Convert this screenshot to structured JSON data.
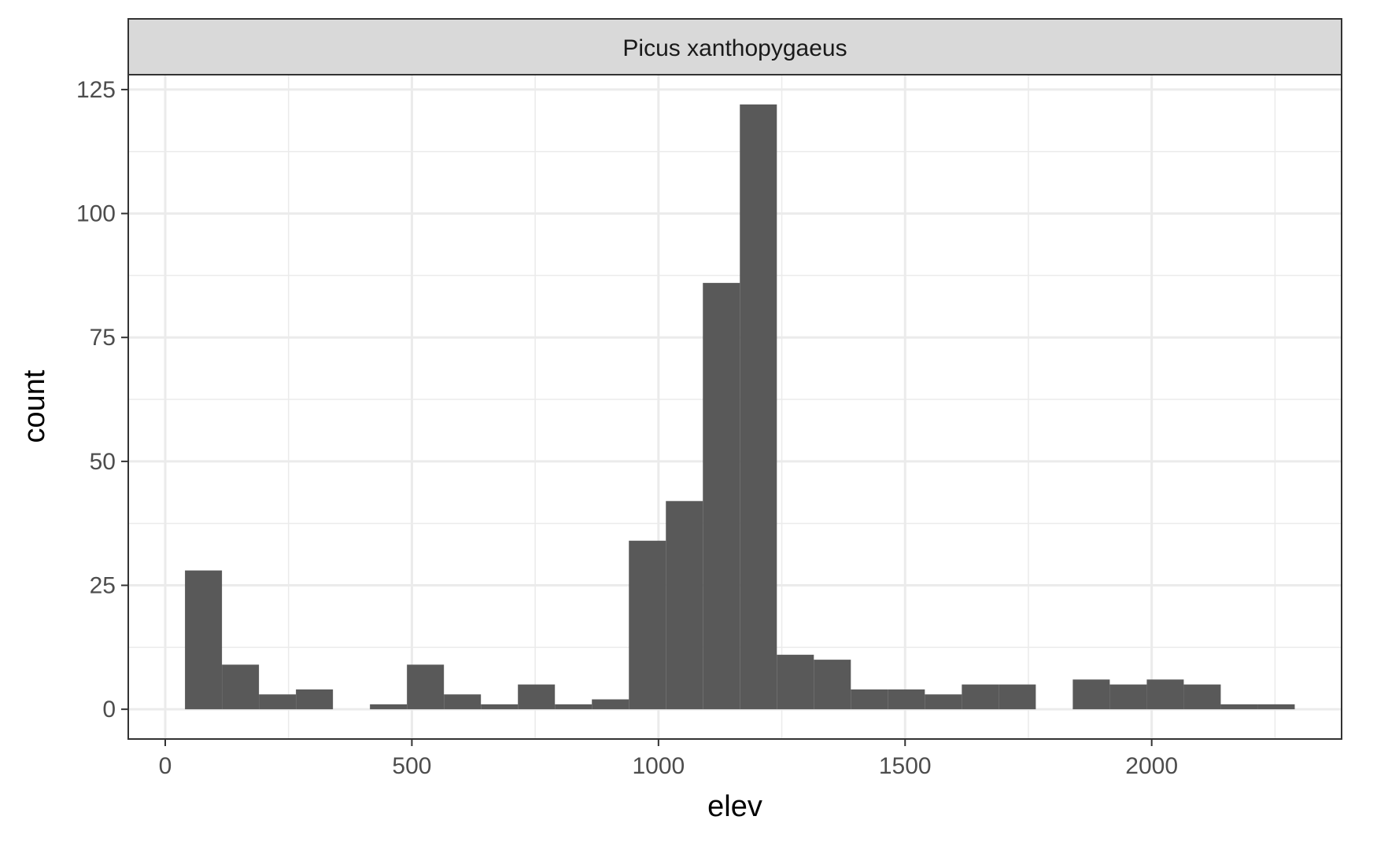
{
  "chart_data": {
    "type": "bar",
    "facet_label": "Picus xanthopygaeus",
    "xlabel": "elev",
    "ylabel": "count",
    "xlim": [
      -75,
      2385
    ],
    "ylim": [
      -6,
      128
    ],
    "x_ticks": [
      0,
      500,
      1000,
      1500,
      2000
    ],
    "y_ticks": [
      0,
      25,
      50,
      75,
      100,
      125
    ],
    "x_tick_labels": [
      "0",
      "500",
      "1000",
      "1500",
      "2000"
    ],
    "y_tick_labels": [
      "0",
      "25",
      "50",
      "75",
      "100",
      "125"
    ],
    "bin_width": 75,
    "bins": [
      {
        "x0": 40,
        "x1": 115,
        "count": 28
      },
      {
        "x0": 115,
        "x1": 190,
        "count": 9
      },
      {
        "x0": 190,
        "x1": 265,
        "count": 3
      },
      {
        "x0": 265,
        "x1": 340,
        "count": 4
      },
      {
        "x0": 340,
        "x1": 415,
        "count": 0
      },
      {
        "x0": 415,
        "x1": 490,
        "count": 1
      },
      {
        "x0": 490,
        "x1": 565,
        "count": 9
      },
      {
        "x0": 565,
        "x1": 640,
        "count": 3
      },
      {
        "x0": 640,
        "x1": 715,
        "count": 1
      },
      {
        "x0": 715,
        "x1": 790,
        "count": 5
      },
      {
        "x0": 790,
        "x1": 865,
        "count": 1
      },
      {
        "x0": 865,
        "x1": 940,
        "count": 2
      },
      {
        "x0": 940,
        "x1": 1015,
        "count": 34
      },
      {
        "x0": 1015,
        "x1": 1090,
        "count": 42
      },
      {
        "x0": 1090,
        "x1": 1165,
        "count": 86
      },
      {
        "x0": 1165,
        "x1": 1240,
        "count": 122
      },
      {
        "x0": 1240,
        "x1": 1315,
        "count": 11
      },
      {
        "x0": 1315,
        "x1": 1390,
        "count": 10
      },
      {
        "x0": 1390,
        "x1": 1465,
        "count": 4
      },
      {
        "x0": 1465,
        "x1": 1540,
        "count": 4
      },
      {
        "x0": 1540,
        "x1": 1615,
        "count": 3
      },
      {
        "x0": 1615,
        "x1": 1690,
        "count": 5
      },
      {
        "x0": 1690,
        "x1": 1765,
        "count": 5
      },
      {
        "x0": 1765,
        "x1": 1840,
        "count": 0
      },
      {
        "x0": 1840,
        "x1": 1915,
        "count": 6
      },
      {
        "x0": 1915,
        "x1": 1990,
        "count": 5
      },
      {
        "x0": 1990,
        "x1": 2065,
        "count": 6
      },
      {
        "x0": 2065,
        "x1": 2140,
        "count": 5
      },
      {
        "x0": 2140,
        "x1": 2215,
        "count": 1
      },
      {
        "x0": 2215,
        "x1": 2290,
        "count": 1
      }
    ],
    "bar_color": "#595959",
    "grid": true,
    "panel_border_color": "#333333",
    "strip_fill": "#d9d9d9"
  }
}
